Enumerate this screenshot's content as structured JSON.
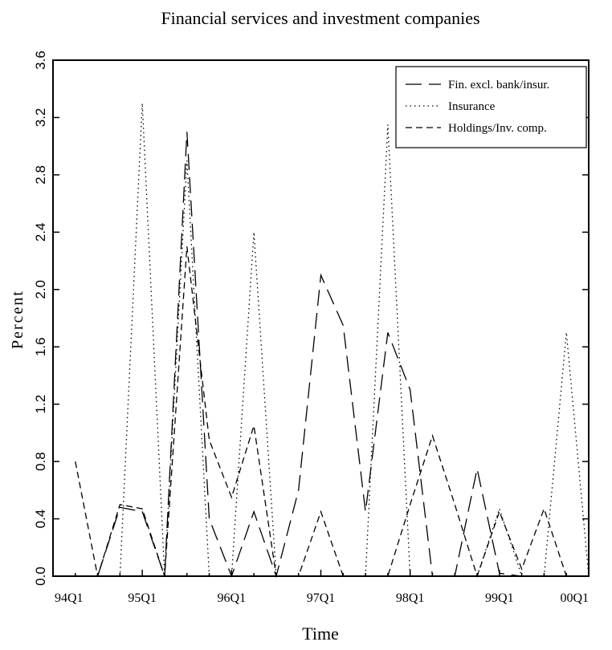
{
  "chart_data": {
    "type": "line",
    "title": "Financial services and investment companies",
    "x_label": "Time",
    "y_label": "Percent",
    "categories": [
      "94Q1",
      null,
      null,
      null,
      "95Q1",
      null,
      null,
      null,
      "96Q1",
      null,
      null,
      null,
      "97Q1",
      null,
      null,
      null,
      "98Q1",
      null,
      null,
      null,
      "99Q1",
      null,
      null,
      null,
      "00Q1"
    ],
    "series": [
      {
        "name": "Fin. excl. bank/insur.",
        "color": "#000000",
        "dash": "long",
        "values": [
          0,
          0,
          0,
          0.48,
          0.45,
          0,
          3.1,
          0.4,
          0,
          0.45,
          0,
          0.6,
          2.1,
          1.75,
          0.45,
          1.7,
          1.3,
          0,
          0,
          0.75,
          0.02,
          0,
          0,
          0,
          0
        ]
      },
      {
        "name": "Insurance",
        "color": "#000000",
        "dash": "dotted",
        "values": [
          0,
          0,
          0,
          0,
          3.3,
          0,
          2.9,
          0,
          0,
          2.4,
          0,
          0,
          0,
          0,
          0,
          3.15,
          0,
          0,
          0,
          0,
          0.47,
          0,
          0,
          1.7,
          0
        ]
      },
      {
        "name": "Holdings/Inv. comp.",
        "color": "#000000",
        "dash": "short",
        "values": [
          null,
          0.8,
          0,
          0.5,
          0.47,
          0,
          2.3,
          0.95,
          0.55,
          1.05,
          0,
          0,
          0.45,
          0,
          0,
          0,
          0.5,
          0.98,
          0.5,
          0,
          0.45,
          0.05,
          0.47,
          0,
          0
        ]
      }
    ],
    "ylim": [
      0,
      3.6
    ],
    "yticks": [
      {
        "value": 0,
        "label": "0.0"
      },
      0.4,
      0.8,
      1.2,
      1.6,
      {
        "value": 2,
        "label": "2.0"
      },
      2.4,
      2.8,
      3.2,
      3.6
    ],
    "legend": "top-right"
  }
}
